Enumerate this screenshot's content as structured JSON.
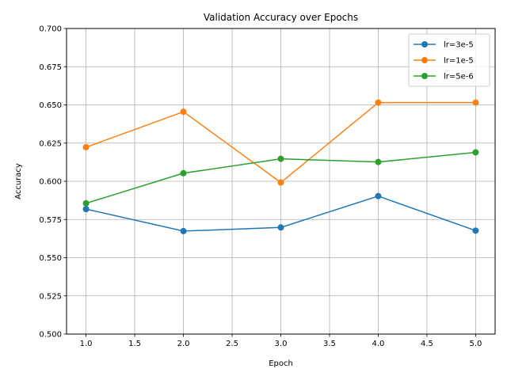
{
  "chart_data": {
    "type": "line",
    "title": "Validation Accuracy over Epochs",
    "xlabel": "Epoch",
    "ylabel": "Accuracy",
    "xlim": [
      0.8,
      5.2
    ],
    "ylim": [
      0.5,
      0.7
    ],
    "xticks": [
      "1.0",
      "1.5",
      "2.0",
      "2.5",
      "3.0",
      "3.5",
      "4.0",
      "4.5",
      "5.0"
    ],
    "xtick_values": [
      1.0,
      1.5,
      2.0,
      2.5,
      3.0,
      3.5,
      4.0,
      4.5,
      5.0
    ],
    "yticks": [
      "0.500",
      "0.525",
      "0.550",
      "0.575",
      "0.600",
      "0.625",
      "0.650",
      "0.675",
      "0.700"
    ],
    "ytick_values": [
      0.5,
      0.525,
      0.55,
      0.575,
      0.6,
      0.625,
      0.65,
      0.675,
      0.7
    ],
    "grid": true,
    "legend_position": "top-right",
    "x": [
      1,
      2,
      3,
      4,
      5
    ],
    "series": [
      {
        "name": "lr=3e-5",
        "color": "#1f77b4",
        "values": [
          0.5818,
          0.5674,
          0.5698,
          0.5903,
          0.5677
        ]
      },
      {
        "name": "lr=1e-5",
        "color": "#ff7f0e",
        "values": [
          0.6223,
          0.6455,
          0.5992,
          0.6515,
          0.6515
        ]
      },
      {
        "name": "lr=5e-6",
        "color": "#2ca02c",
        "values": [
          0.5856,
          0.6053,
          0.6147,
          0.6126,
          0.6189
        ]
      }
    ]
  }
}
